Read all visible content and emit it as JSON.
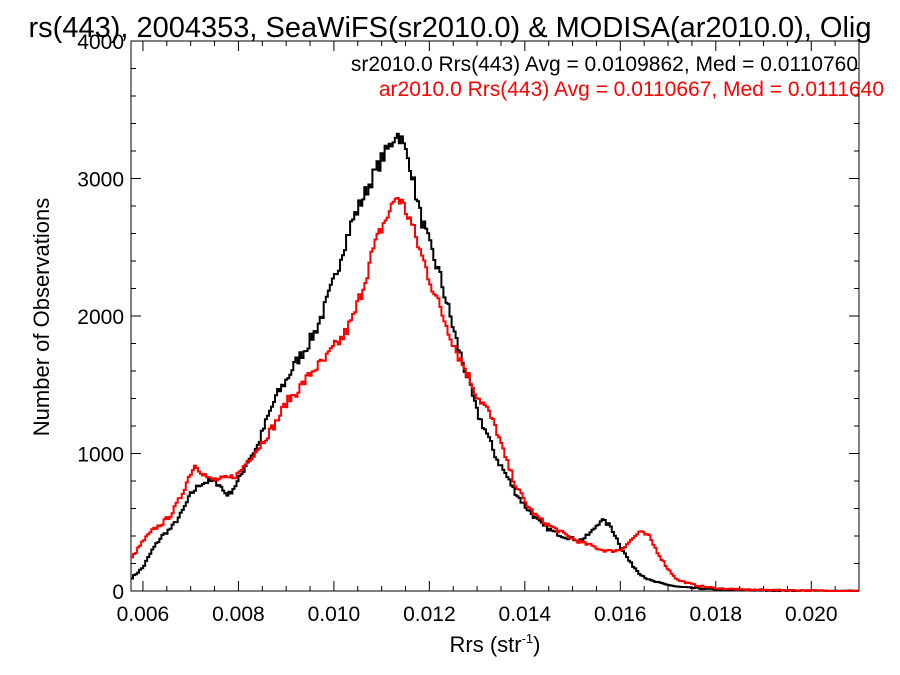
{
  "chart_data": {
    "type": "line",
    "title": "rs(443), 2004353, SeaWiFS(sr2010.0) & MODISA(ar2010.0), Olig",
    "xlabel": "Rrs (str",
    "xlabel_sup": "-1",
    "xlabel_end": ")",
    "ylabel": "Number of Observations",
    "xlim": [
      0.00575,
      0.021
    ],
    "ylim": [
      0,
      4000
    ],
    "x_ticks": [
      0.006,
      0.008,
      0.01,
      0.012,
      0.014,
      0.016,
      0.018,
      0.02
    ],
    "x_tick_labels": [
      "0.006",
      "0.008",
      "0.010",
      "0.012",
      "0.014",
      "0.016",
      "0.018",
      "0.020"
    ],
    "y_ticks": [
      0,
      1000,
      2000,
      3000,
      4000
    ],
    "y_tick_labels": [
      "0",
      "1000",
      "2000",
      "3000",
      "4000"
    ],
    "grid": false,
    "legend_position": "top-right",
    "series": [
      {
        "name": "sr2010.0 Rrs(443) Avg = 0.0109862, Med = 0.0110760",
        "color": "#000000",
        "points": [
          [
            0.00575,
            90
          ],
          [
            0.006,
            170
          ],
          [
            0.0062,
            300
          ],
          [
            0.0064,
            400
          ],
          [
            0.0066,
            460
          ],
          [
            0.0068,
            560
          ],
          [
            0.007,
            700
          ],
          [
            0.0072,
            780
          ],
          [
            0.0074,
            800
          ],
          [
            0.0076,
            780
          ],
          [
            0.0077,
            720
          ],
          [
            0.0078,
            700
          ],
          [
            0.008,
            800
          ],
          [
            0.0082,
            950
          ],
          [
            0.0084,
            1050
          ],
          [
            0.0086,
            1250
          ],
          [
            0.0088,
            1420
          ],
          [
            0.009,
            1530
          ],
          [
            0.0092,
            1660
          ],
          [
            0.0094,
            1760
          ],
          [
            0.0096,
            1880
          ],
          [
            0.0098,
            2050
          ],
          [
            0.01,
            2250
          ],
          [
            0.0102,
            2500
          ],
          [
            0.0104,
            2700
          ],
          [
            0.0106,
            2850
          ],
          [
            0.0108,
            3000
          ],
          [
            0.011,
            3140
          ],
          [
            0.0112,
            3250
          ],
          [
            0.0113,
            3330
          ],
          [
            0.0114,
            3300
          ],
          [
            0.0116,
            3100
          ],
          [
            0.0118,
            2750
          ],
          [
            0.012,
            2520
          ],
          [
            0.0122,
            2320
          ],
          [
            0.0124,
            2050
          ],
          [
            0.0126,
            1780
          ],
          [
            0.0128,
            1550
          ],
          [
            0.013,
            1300
          ],
          [
            0.0132,
            1150
          ],
          [
            0.0134,
            970
          ],
          [
            0.0136,
            850
          ],
          [
            0.0138,
            720
          ],
          [
            0.014,
            620
          ],
          [
            0.0142,
            540
          ],
          [
            0.0144,
            470
          ],
          [
            0.0146,
            430
          ],
          [
            0.0148,
            400
          ],
          [
            0.015,
            380
          ],
          [
            0.0152,
            370
          ],
          [
            0.0154,
            430
          ],
          [
            0.0156,
            520
          ],
          [
            0.0158,
            470
          ],
          [
            0.016,
            330
          ],
          [
            0.0162,
            210
          ],
          [
            0.0164,
            130
          ],
          [
            0.0166,
            80
          ],
          [
            0.0168,
            60
          ],
          [
            0.017,
            45
          ],
          [
            0.0172,
            30
          ],
          [
            0.0176,
            20
          ],
          [
            0.018,
            10
          ],
          [
            0.019,
            4
          ],
          [
            0.02,
            2
          ],
          [
            0.021,
            0
          ]
        ]
      },
      {
        "name": "ar2010.0 Rrs(443) Avg = 0.0110667, Med = 0.0111640",
        "color": "#ff0000",
        "points": [
          [
            0.00575,
            230
          ],
          [
            0.006,
            360
          ],
          [
            0.0062,
            440
          ],
          [
            0.0064,
            490
          ],
          [
            0.0066,
            560
          ],
          [
            0.0068,
            690
          ],
          [
            0.007,
            860
          ],
          [
            0.0071,
            920
          ],
          [
            0.0072,
            880
          ],
          [
            0.0074,
            810
          ],
          [
            0.0076,
            810
          ],
          [
            0.0078,
            820
          ],
          [
            0.008,
            850
          ],
          [
            0.0082,
            950
          ],
          [
            0.0084,
            1030
          ],
          [
            0.0086,
            1130
          ],
          [
            0.0088,
            1230
          ],
          [
            0.009,
            1370
          ],
          [
            0.0092,
            1440
          ],
          [
            0.0094,
            1530
          ],
          [
            0.0096,
            1620
          ],
          [
            0.0098,
            1670
          ],
          [
            0.01,
            1770
          ],
          [
            0.0102,
            1850
          ],
          [
            0.0104,
            1980
          ],
          [
            0.0106,
            2200
          ],
          [
            0.0108,
            2450
          ],
          [
            0.011,
            2640
          ],
          [
            0.0112,
            2780
          ],
          [
            0.0113,
            2870
          ],
          [
            0.0114,
            2840
          ],
          [
            0.0116,
            2700
          ],
          [
            0.0118,
            2480
          ],
          [
            0.012,
            2280
          ],
          [
            0.0122,
            2080
          ],
          [
            0.0124,
            1900
          ],
          [
            0.0126,
            1720
          ],
          [
            0.0128,
            1580
          ],
          [
            0.013,
            1420
          ],
          [
            0.0132,
            1330
          ],
          [
            0.0134,
            1180
          ],
          [
            0.0136,
            960
          ],
          [
            0.0138,
            780
          ],
          [
            0.014,
            650
          ],
          [
            0.0142,
            560
          ],
          [
            0.0144,
            500
          ],
          [
            0.0146,
            460
          ],
          [
            0.0148,
            420
          ],
          [
            0.015,
            380
          ],
          [
            0.0152,
            350
          ],
          [
            0.0154,
            330
          ],
          [
            0.0156,
            300
          ],
          [
            0.0158,
            290
          ],
          [
            0.016,
            300
          ],
          [
            0.0162,
            360
          ],
          [
            0.0164,
            430
          ],
          [
            0.0166,
            400
          ],
          [
            0.0168,
            270
          ],
          [
            0.017,
            160
          ],
          [
            0.0172,
            80
          ],
          [
            0.0176,
            40
          ],
          [
            0.018,
            20
          ],
          [
            0.0186,
            10
          ],
          [
            0.0196,
            5
          ],
          [
            0.021,
            0
          ]
        ]
      }
    ]
  }
}
